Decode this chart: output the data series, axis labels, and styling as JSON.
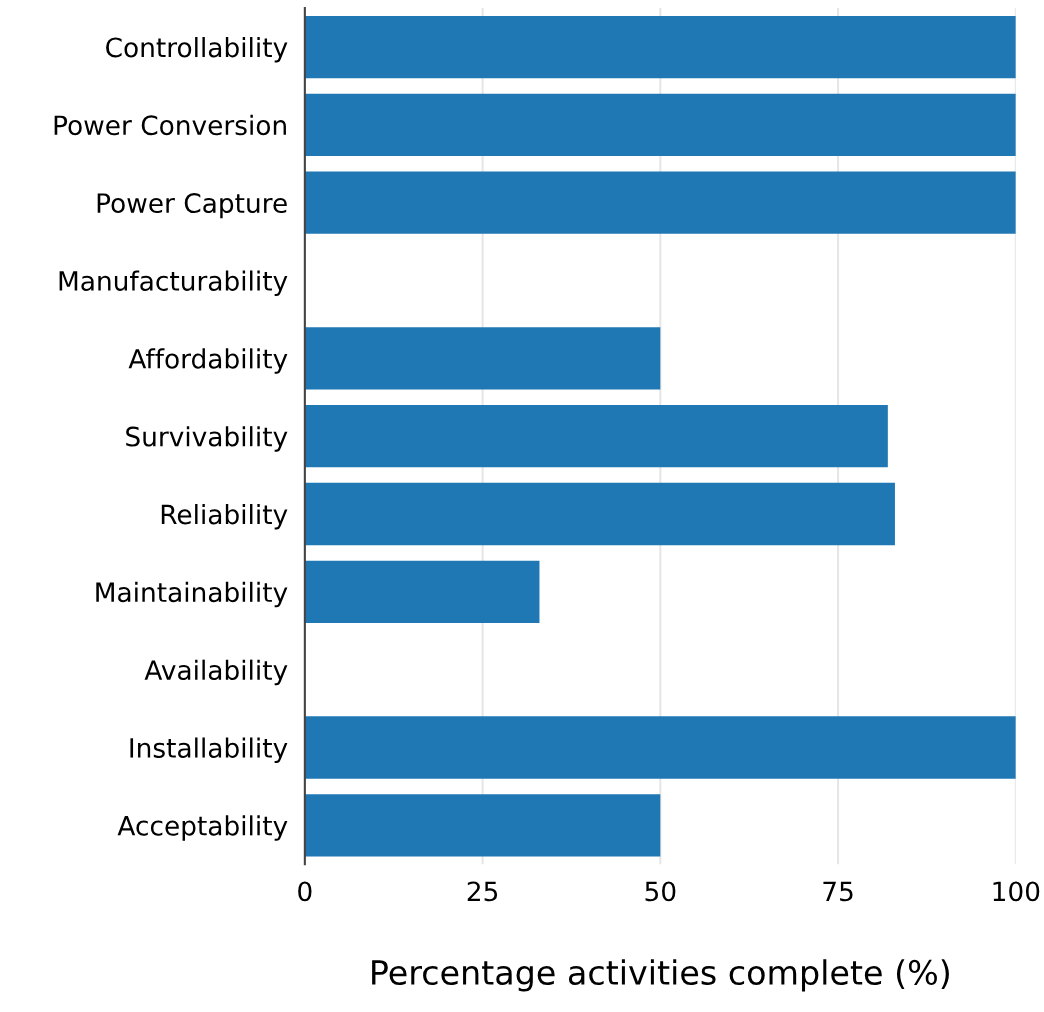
{
  "chart_data": {
    "type": "bar",
    "orientation": "horizontal",
    "xlabel": "Percentage activities complete (%)",
    "categories": [
      "Controllability",
      "Power Conversion",
      "Power Capture",
      "Manufacturability",
      "Affordability",
      "Survivability",
      "Reliability",
      "Maintainability",
      "Availability",
      "Installability",
      "Acceptability"
    ],
    "values": [
      100,
      100,
      100,
      0,
      50,
      82,
      83,
      33,
      0,
      100,
      50
    ],
    "color": "#1f77b4",
    "xlim": [
      0,
      100
    ],
    "xticks": [
      0,
      25,
      50,
      75,
      100
    ],
    "grid": "x",
    "legend": false
  }
}
